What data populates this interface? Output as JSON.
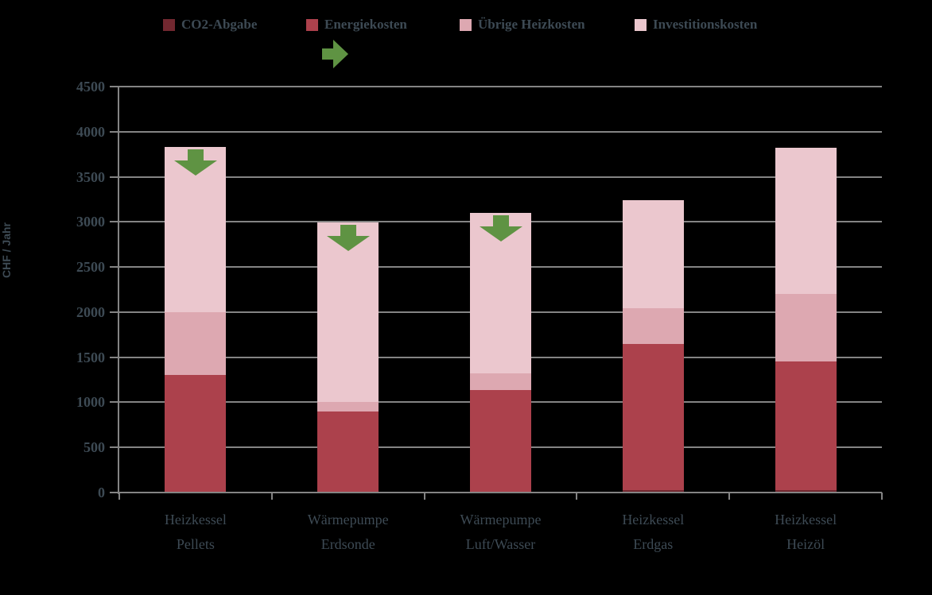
{
  "colors": {
    "background": "#000000",
    "grid": "#848484",
    "text": "#3d4a54",
    "arrow_green": "#5f9343"
  },
  "legend": {
    "items": [
      {
        "label": "CO2-Abgabe",
        "color": "#722830"
      },
      {
        "label": "Energiekosten",
        "color": "#ac414c"
      },
      {
        "label": "Übrige Heizkosten",
        "color": "#dda8b1"
      },
      {
        "label": "Investitionskosten",
        "color": "#ebc7ce"
      }
    ]
  },
  "chart_data": {
    "type": "bar",
    "stacked": true,
    "title": "",
    "xlabel": "",
    "ylabel": "CHF / Jahr",
    "ylim": [
      0,
      4500
    ],
    "ytick_step": 500,
    "grid": true,
    "legend_position": "top",
    "categories": [
      [
        "Heizkessel",
        "Pellets"
      ],
      [
        "Wärmepumpe",
        "Erdsonde"
      ],
      [
        "Wärmepumpe",
        "Luft/Wasser"
      ],
      [
        "Heizkessel",
        "Erdgas"
      ],
      [
        "Heizkessel",
        "Heizöl"
      ]
    ],
    "series": [
      {
        "name": "CO2-Abgabe",
        "color": "#722830",
        "values": [
          0,
          0,
          0,
          30,
          30
        ]
      },
      {
        "name": "Energiekosten",
        "color": "#ac414c",
        "values": [
          1300,
          900,
          1140,
          1620,
          1420
        ]
      },
      {
        "name": "Übrige Heizkosten",
        "color": "#dda8b1",
        "values": [
          700,
          100,
          180,
          390,
          750
        ]
      },
      {
        "name": "Investitionskosten",
        "color": "#ebc7ce",
        "values": [
          1830,
          1990,
          1780,
          1200,
          1620
        ]
      }
    ],
    "totals": [
      3830,
      2990,
      3100,
      3240,
      3820
    ],
    "annotations": {
      "down_arrows_on_bar_indexes": [
        0,
        1,
        2
      ],
      "floating_right_arrow": true,
      "arrow_color": "#5f9343"
    },
    "y_tick_labels": [
      "0",
      "500",
      "1000",
      "1500",
      "2000",
      "2500",
      "3000",
      "3500",
      "4000",
      "4500"
    ]
  }
}
